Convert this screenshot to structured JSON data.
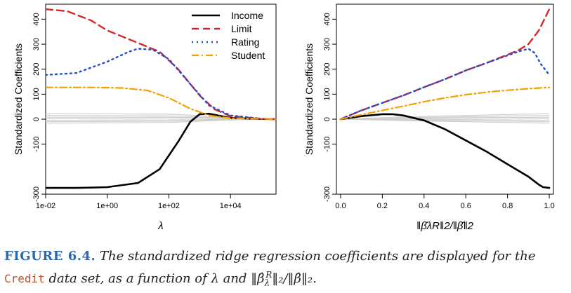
{
  "figure": {
    "label": "FIGURE 6.4.",
    "caption_part1": "The standardized ridge regression coefficients are displayed for the",
    "caption_code": "Credit",
    "caption_part2": "data set, as a function of λ and ‖β̂",
    "caption_part3": "‖₂/‖β̂‖₂."
  },
  "colors": {
    "income": "#000000",
    "limit": "#d62728",
    "rating": "#1f4bd6",
    "student": "#f5a000",
    "others": "#cfcfcf"
  },
  "chart_data": [
    {
      "type": "line",
      "xscale": "log",
      "xlabel": "λ",
      "ylabel": "Standardized Coefficients",
      "xlim": [
        0.01,
        300000
      ],
      "ylim": [
        -300,
        460
      ],
      "x_ticks": [
        "1e-02",
        "1e+00",
        "1e+02",
        "1e+04"
      ],
      "y_ticks": [
        "-300",
        "-100",
        "0",
        "100",
        "200",
        "300",
        "400"
      ],
      "legend": {
        "position": "top-right",
        "entries": [
          "Income",
          "Limit",
          "Rating",
          "Student"
        ]
      },
      "series": [
        {
          "name": "Income",
          "style": "solid",
          "points": [
            [
              0.01,
              -275
            ],
            [
              0.1,
              -275
            ],
            [
              1,
              -272
            ],
            [
              10,
              -255
            ],
            [
              50,
              -200
            ],
            [
              200,
              -90
            ],
            [
              500,
              -10
            ],
            [
              1000,
              20
            ],
            [
              2000,
              22
            ],
            [
              5000,
              12
            ],
            [
              10000,
              5
            ],
            [
              100000,
              1
            ],
            [
              300000,
              0
            ]
          ]
        },
        {
          "name": "Limit",
          "style": "dashed",
          "points": [
            [
              0.01,
              440
            ],
            [
              0.05,
              432
            ],
            [
              0.3,
              395
            ],
            [
              1,
              355
            ],
            [
              10,
              305
            ],
            [
              50,
              270
            ],
            [
              200,
              200
            ],
            [
              1000,
              95
            ],
            [
              3000,
              40
            ],
            [
              10000,
              12
            ],
            [
              100000,
              2
            ],
            [
              300000,
              0
            ]
          ]
        },
        {
          "name": "Rating",
          "style": "dotted",
          "points": [
            [
              0.01,
              177
            ],
            [
              0.1,
              185
            ],
            [
              1,
              230
            ],
            [
              5,
              270
            ],
            [
              10,
              282
            ],
            [
              30,
              278
            ],
            [
              100,
              240
            ],
            [
              500,
              140
            ],
            [
              2000,
              55
            ],
            [
              10000,
              15
            ],
            [
              100000,
              2
            ],
            [
              300000,
              0
            ]
          ]
        },
        {
          "name": "Student",
          "style": "dashdot",
          "points": [
            [
              0.01,
              127
            ],
            [
              0.3,
              127
            ],
            [
              3,
              125
            ],
            [
              20,
              115
            ],
            [
              100,
              85
            ],
            [
              500,
              42
            ],
            [
              2000,
              15
            ],
            [
              10000,
              4
            ],
            [
              300000,
              0
            ]
          ]
        }
      ],
      "other_series": [
        [
          [
            0.01,
            22
          ],
          [
            100,
            20
          ],
          [
            1000,
            14
          ],
          [
            10000,
            4
          ],
          [
            300000,
            0
          ]
        ],
        [
          [
            0.01,
            15
          ],
          [
            100,
            13
          ],
          [
            1000,
            9
          ],
          [
            10000,
            3
          ],
          [
            300000,
            0
          ]
        ],
        [
          [
            0.01,
            8
          ],
          [
            100,
            8
          ],
          [
            1000,
            6
          ],
          [
            10000,
            2
          ],
          [
            300000,
            0
          ]
        ],
        [
          [
            0.01,
            -4
          ],
          [
            100,
            -3
          ],
          [
            1000,
            -2
          ],
          [
            10000,
            -1
          ],
          [
            300000,
            0
          ]
        ],
        [
          [
            0.01,
            -10
          ],
          [
            100,
            -8
          ],
          [
            1000,
            -5
          ],
          [
            10000,
            -2
          ],
          [
            300000,
            0
          ]
        ],
        [
          [
            0.01,
            -16
          ],
          [
            100,
            -13
          ],
          [
            1000,
            -8
          ],
          [
            10000,
            -3
          ],
          [
            300000,
            0
          ]
        ],
        [
          [
            0.01,
            3
          ],
          [
            100,
            5
          ],
          [
            1000,
            4
          ],
          [
            10000,
            1
          ],
          [
            300000,
            0
          ]
        ]
      ]
    },
    {
      "type": "line",
      "xscale": "linear",
      "xlabel": "‖β̂λR‖2/‖β̂‖2",
      "ylabel": "Standardized Coefficients",
      "xlim": [
        -0.02,
        1.02
      ],
      "ylim": [
        -300,
        460
      ],
      "x_ticks": [
        "0.0",
        "0.2",
        "0.4",
        "0.6",
        "0.8",
        "1.0"
      ],
      "y_ticks": [
        "-300",
        "-100",
        "0",
        "100",
        "200",
        "300",
        "400"
      ],
      "series": [
        {
          "name": "Income",
          "style": "solid",
          "points": [
            [
              0,
              0
            ],
            [
              0.1,
              12
            ],
            [
              0.2,
              20
            ],
            [
              0.25,
              20
            ],
            [
              0.3,
              15
            ],
            [
              0.4,
              -5
            ],
            [
              0.5,
              -40
            ],
            [
              0.6,
              -85
            ],
            [
              0.7,
              -130
            ],
            [
              0.8,
              -180
            ],
            [
              0.9,
              -230
            ],
            [
              0.95,
              -262
            ],
            [
              0.97,
              -272
            ],
            [
              1.0,
              -275
            ]
          ]
        },
        {
          "name": "Limit",
          "style": "dashed",
          "points": [
            [
              0,
              0
            ],
            [
              0.1,
              35
            ],
            [
              0.2,
              65
            ],
            [
              0.3,
              95
            ],
            [
              0.4,
              128
            ],
            [
              0.5,
              160
            ],
            [
              0.6,
              195
            ],
            [
              0.7,
              225
            ],
            [
              0.8,
              258
            ],
            [
              0.85,
              275
            ],
            [
              0.9,
              300
            ],
            [
              0.95,
              355
            ],
            [
              1.0,
              440
            ]
          ]
        },
        {
          "name": "Rating",
          "style": "dotted",
          "points": [
            [
              0,
              0
            ],
            [
              0.1,
              35
            ],
            [
              0.2,
              65
            ],
            [
              0.3,
              95
            ],
            [
              0.4,
              128
            ],
            [
              0.5,
              160
            ],
            [
              0.6,
              195
            ],
            [
              0.7,
              225
            ],
            [
              0.8,
              255
            ],
            [
              0.85,
              270
            ],
            [
              0.9,
              282
            ],
            [
              0.93,
              265
            ],
            [
              0.96,
              220
            ],
            [
              1.0,
              177
            ]
          ]
        },
        {
          "name": "Student",
          "style": "dashdot",
          "points": [
            [
              0,
              0
            ],
            [
              0.1,
              18
            ],
            [
              0.2,
              35
            ],
            [
              0.3,
              52
            ],
            [
              0.4,
              70
            ],
            [
              0.5,
              85
            ],
            [
              0.6,
              98
            ],
            [
              0.7,
              108
            ],
            [
              0.8,
              116
            ],
            [
              0.9,
              122
            ],
            [
              1.0,
              127
            ]
          ]
        }
      ],
      "other_series": [
        [
          [
            0,
            0
          ],
          [
            0.3,
            9
          ],
          [
            0.6,
            15
          ],
          [
            0.8,
            19
          ],
          [
            1.0,
            22
          ]
        ],
        [
          [
            0,
            0
          ],
          [
            0.3,
            6
          ],
          [
            0.6,
            10
          ],
          [
            0.8,
            13
          ],
          [
            1.0,
            15
          ]
        ],
        [
          [
            0,
            0
          ],
          [
            0.3,
            3
          ],
          [
            0.6,
            6
          ],
          [
            0.8,
            7
          ],
          [
            1.0,
            8
          ]
        ],
        [
          [
            0,
            0
          ],
          [
            0.3,
            -1
          ],
          [
            0.6,
            -2
          ],
          [
            0.8,
            -3
          ],
          [
            1.0,
            -4
          ]
        ],
        [
          [
            0,
            0
          ],
          [
            0.3,
            -4
          ],
          [
            0.6,
            -6
          ],
          [
            0.8,
            -8
          ],
          [
            1.0,
            -10
          ]
        ],
        [
          [
            0,
            0
          ],
          [
            0.3,
            -6
          ],
          [
            0.6,
            -10
          ],
          [
            0.8,
            -13
          ],
          [
            1.0,
            -16
          ]
        ],
        [
          [
            0,
            0
          ],
          [
            0.3,
            2
          ],
          [
            0.6,
            4
          ],
          [
            0.8,
            5
          ],
          [
            1.0,
            3
          ]
        ]
      ]
    }
  ]
}
